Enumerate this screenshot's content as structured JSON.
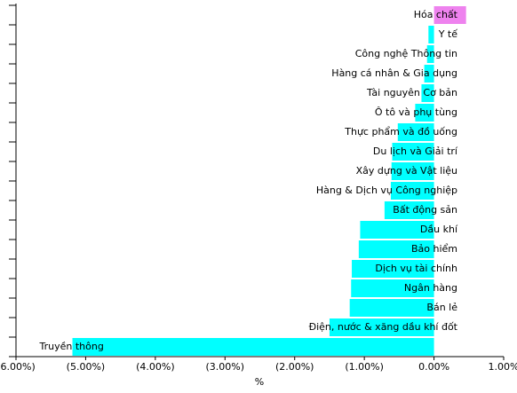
{
  "chart_data": {
    "type": "barh",
    "categories": [
      "Hóa chất",
      "Y tế",
      "Công nghệ Thông tin",
      "Hàng cá nhân & Gia dụng",
      "Tài nguyên Cơ bản",
      "Ô tô và phụ tùng",
      "Thực phẩm và đồ uống",
      "Du lịch và Giải trí",
      "Xây dựng và Vật liệu",
      "Hàng & Dịch vụ Công nghiệp",
      "Bất động sản",
      "Dầu khí",
      "Bảo hiểm",
      "Dịch vụ tài chính",
      "Ngân hàng",
      "Bán lẻ",
      "Điện, nước & xăng dầu khí đốt",
      "Truyền thông"
    ],
    "values": [
      0.46,
      -0.08,
      -0.1,
      -0.14,
      -0.18,
      -0.27,
      -0.52,
      -0.6,
      -0.61,
      -0.62,
      -0.71,
      -1.06,
      -1.08,
      -1.18,
      -1.19,
      -1.21,
      -1.5,
      -5.19
    ],
    "colors": [
      "#ee82ee",
      "#00ffff",
      "#00ffff",
      "#00ffff",
      "#00ffff",
      "#00ffff",
      "#00ffff",
      "#00ffff",
      "#00ffff",
      "#00ffff",
      "#00ffff",
      "#00ffff",
      "#00ffff",
      "#00ffff",
      "#00ffff",
      "#00ffff",
      "#00ffff",
      "#00ffff"
    ],
    "xlabel": "%",
    "xlim": [
      -6,
      1
    ],
    "xticks": [
      {
        "value": -6,
        "label": "(6.00%)"
      },
      {
        "value": -5,
        "label": "(5.00%)"
      },
      {
        "value": -4,
        "label": "(4.00%)"
      },
      {
        "value": -3,
        "label": "(3.00%)"
      },
      {
        "value": -2,
        "label": "(2.00%)"
      },
      {
        "value": -1,
        "label": "(1.00%)"
      },
      {
        "value": 0,
        "label": "0.00%"
      },
      {
        "value": 1,
        "label": "1.00%"
      }
    ]
  }
}
